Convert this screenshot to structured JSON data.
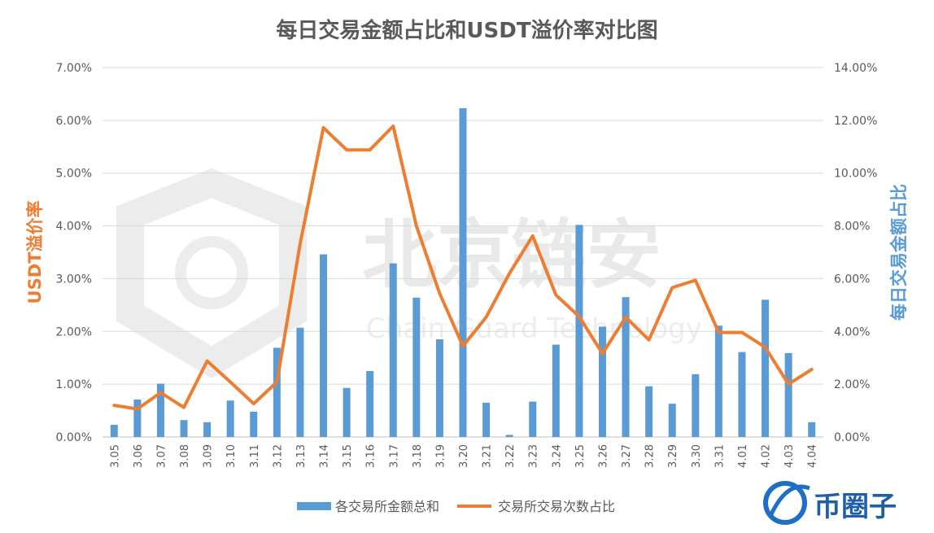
{
  "chart_data": {
    "type": "bar+line",
    "title": "每日交易金额占比和USDT溢价率对比图",
    "categories": [
      "3.05",
      "3.06",
      "3.07",
      "3.08",
      "3.09",
      "3.10",
      "3.11",
      "3.12",
      "3.13",
      "3.14",
      "3.15",
      "3.16",
      "3.17",
      "3.18",
      "3.19",
      "3.20",
      "3.21",
      "3.22",
      "3.23",
      "3.24",
      "3.25",
      "3.26",
      "3.27",
      "3.28",
      "3.29",
      "3.30",
      "3.31",
      "4.01",
      "4.02",
      "4.03",
      "4.04"
    ],
    "ylabel_left": "USDT溢价率",
    "ylabel_right": "每日交易金额占比",
    "left_axis": {
      "ylim": [
        0,
        7
      ],
      "ticks": [
        "0.00%",
        "1.00%",
        "2.00%",
        "3.00%",
        "4.00%",
        "5.00%",
        "6.00%",
        "7.00%"
      ]
    },
    "right_axis": {
      "ylim": [
        0,
        14
      ],
      "ticks": [
        "0.00%",
        "2.00%",
        "4.00%",
        "6.00%",
        "8.00%",
        "10.00%",
        "12.00%",
        "14.00%"
      ]
    },
    "series": [
      {
        "name": "各交易所金额总和",
        "type": "bar",
        "axis": "right",
        "color": "#5B9BD5",
        "values": [
          0.46,
          1.42,
          2.02,
          0.64,
          0.56,
          1.38,
          0.96,
          3.38,
          4.14,
          6.92,
          1.86,
          2.5,
          6.58,
          5.28,
          3.7,
          12.46,
          1.3,
          0.08,
          1.34,
          3.5,
          8.04,
          4.18,
          5.3,
          1.92,
          1.26,
          2.38,
          4.22,
          3.22,
          5.2,
          3.18,
          0.56
        ]
      },
      {
        "name": "交易所交易次数占比",
        "type": "line",
        "axis": "left",
        "color": "#ED7D31",
        "values": [
          0.6,
          0.53,
          0.84,
          0.56,
          1.44,
          1.04,
          0.63,
          1.04,
          3.66,
          5.86,
          5.44,
          5.44,
          5.89,
          4.0,
          2.72,
          1.72,
          2.27,
          3.1,
          3.81,
          2.69,
          2.28,
          1.58,
          2.27,
          1.84,
          2.83,
          2.97,
          1.98,
          1.98,
          1.7,
          1.0,
          1.28
        ]
      }
    ],
    "legend": {
      "position": "bottom"
    },
    "grid": true
  },
  "watermark": {
    "text": "北京链安",
    "subtext": "Chain Guard Technology"
  },
  "logo": {
    "text": "币圈子"
  }
}
